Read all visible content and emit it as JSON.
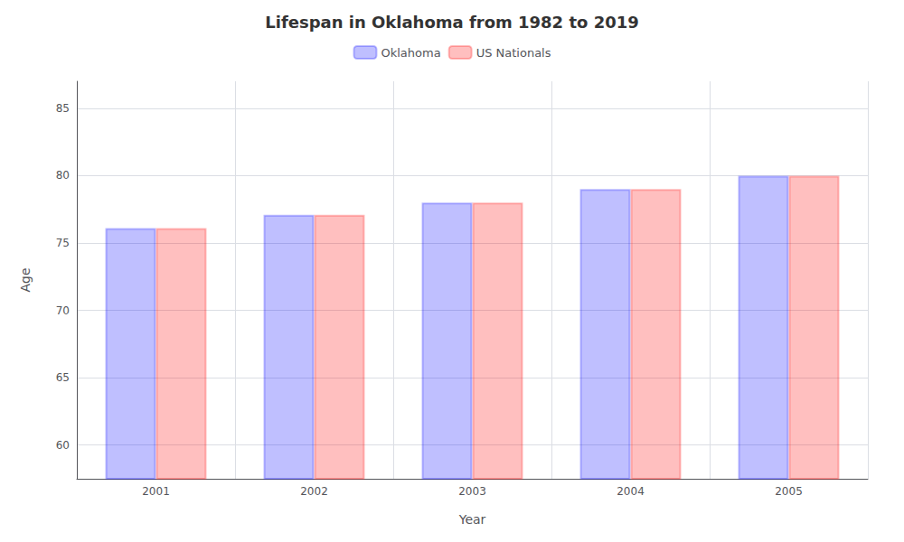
{
  "chart_data": {
    "type": "bar",
    "title": "Lifespan in Oklahoma from 1982 to 2019",
    "xlabel": "Year",
    "ylabel": "Age",
    "categories": [
      "2001",
      "2002",
      "2003",
      "2004",
      "2005"
    ],
    "series": [
      {
        "name": "Oklahoma",
        "color": "#0000ff",
        "values": [
          76.1,
          77.1,
          78.0,
          79.0,
          80.0
        ]
      },
      {
        "name": "US Nationals",
        "color": "#ff0000",
        "values": [
          76.1,
          77.1,
          78.0,
          79.0,
          80.0
        ]
      }
    ],
    "ylim": [
      57.5,
      87
    ],
    "yticks": [
      60,
      65,
      70,
      75,
      80,
      85
    ],
    "grid": true,
    "legend": "top"
  }
}
